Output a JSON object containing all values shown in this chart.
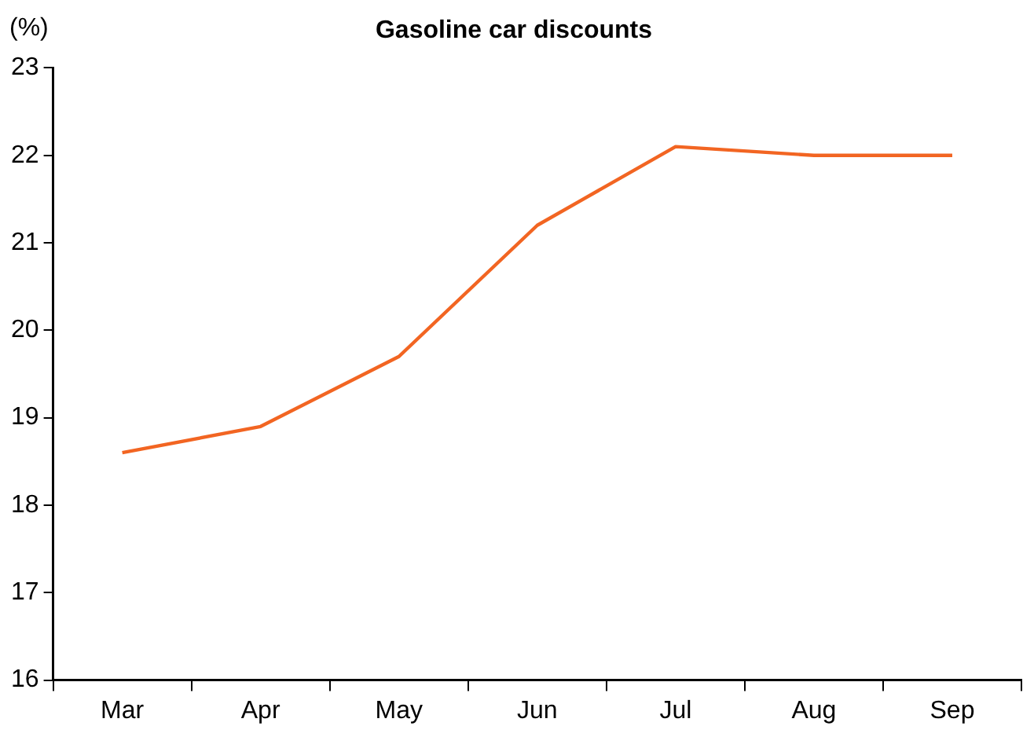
{
  "chart_data": {
    "type": "line",
    "title": "Gasoline car discounts",
    "ylabel": "(%)",
    "categories": [
      "Mar",
      "Apr",
      "May",
      "Jun",
      "Jul",
      "Aug",
      "Sep"
    ],
    "series": [
      {
        "color": "#f26522",
        "values": [
          18.6,
          18.9,
          19.7,
          21.2,
          22.1,
          22.0,
          22.0
        ]
      }
    ],
    "ylim": [
      16,
      23
    ],
    "yticks": [
      16,
      17,
      18,
      19,
      20,
      21,
      22,
      23
    ],
    "grid": false,
    "legend": false,
    "marker": "none",
    "line_style": "solid"
  }
}
